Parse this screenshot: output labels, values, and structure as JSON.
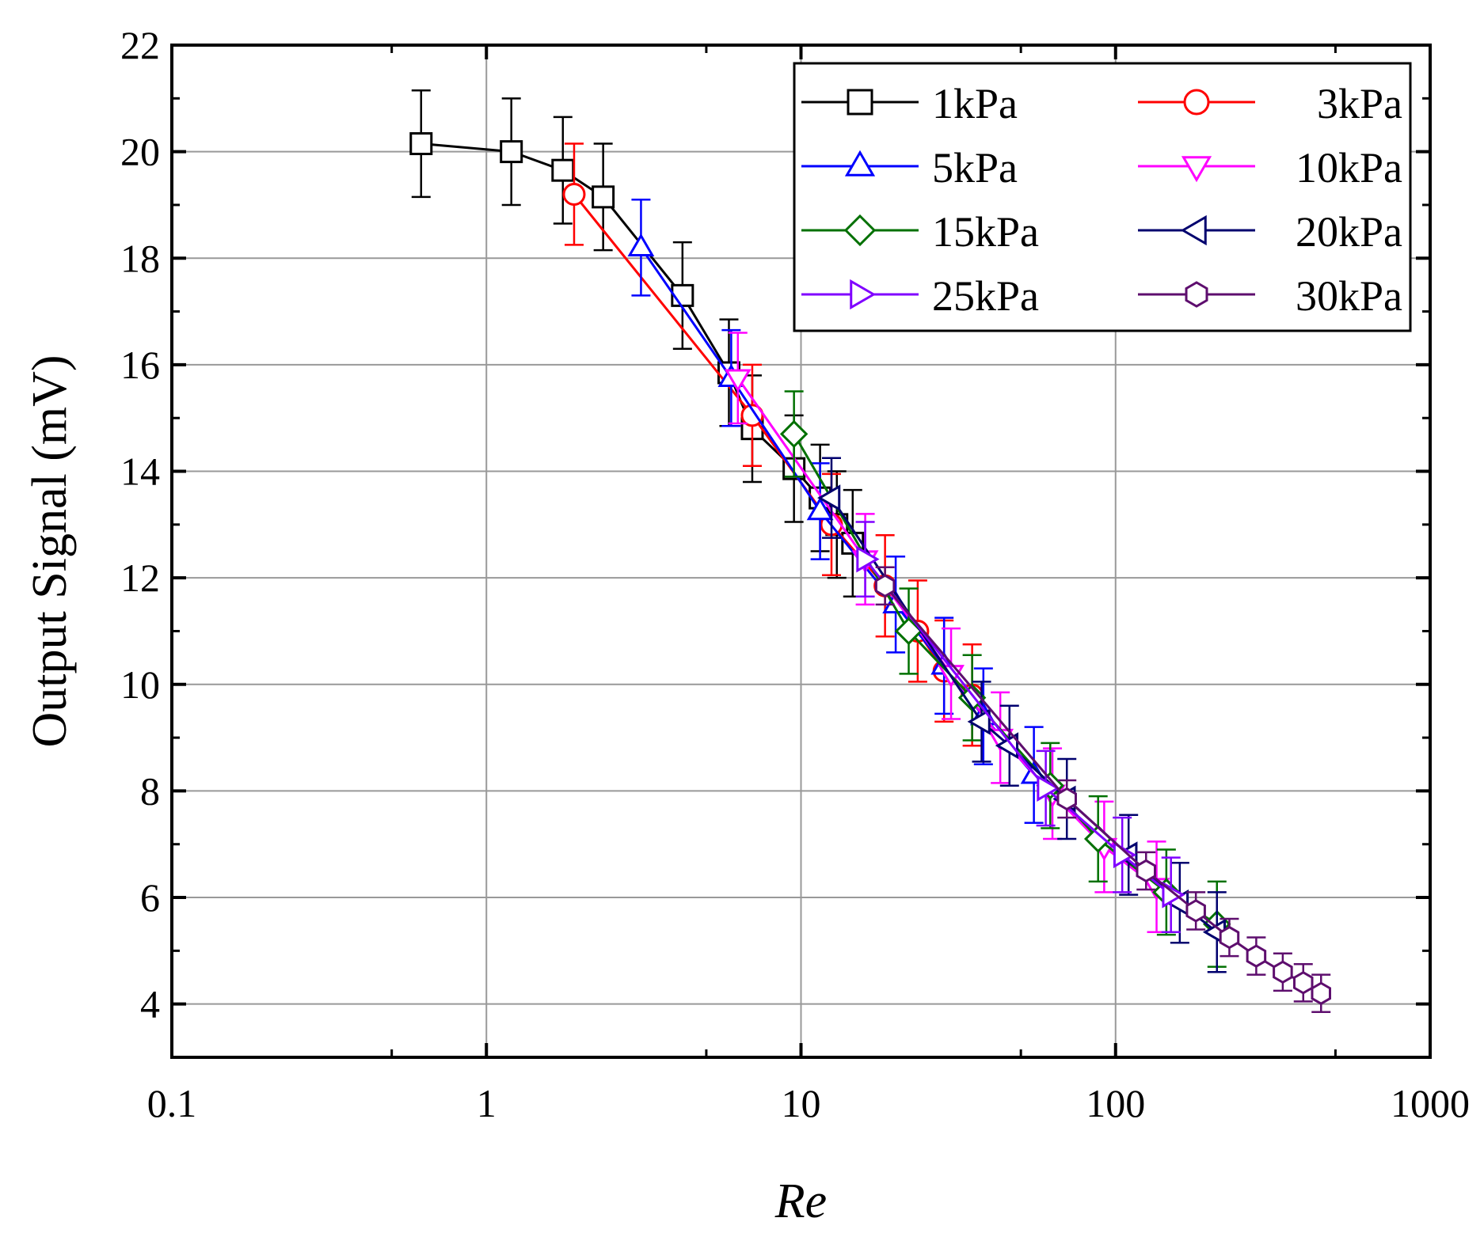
{
  "chart_data": {
    "type": "line",
    "xscale": "log",
    "xlabel": "Re",
    "ylabel": "Output Signal (mV)",
    "xlim": [
      0.1,
      1000
    ],
    "ylim": [
      3,
      22
    ],
    "x_ticks": [
      0.1,
      1,
      10,
      100,
      1000
    ],
    "x_tick_labels": [
      "0.1",
      "1",
      "10",
      "100",
      "1000"
    ],
    "y_ticks": [
      4,
      6,
      8,
      10,
      12,
      14,
      16,
      18,
      20,
      22
    ],
    "y_tick_labels": [
      "4",
      "6",
      "8",
      "10",
      "12",
      "14",
      "16",
      "18",
      "20",
      "22"
    ],
    "grid": true,
    "legend_position": "top-right",
    "series": [
      {
        "name": "1kPa",
        "color": "#000000",
        "marker": "square",
        "x": [
          0.62,
          1.2,
          1.75,
          2.35,
          4.2,
          5.9,
          7.0,
          9.5,
          11.5,
          13.0,
          14.6
        ],
        "y": [
          20.15,
          20.0,
          19.65,
          19.15,
          17.3,
          15.85,
          14.8,
          14.05,
          13.5,
          13.0,
          12.65
        ],
        "err": 1.0
      },
      {
        "name": "3kPa",
        "color": "#ff0000",
        "marker": "circle",
        "x": [
          1.9,
          7.0,
          12.5,
          18.5,
          23.5,
          28.5,
          35.0
        ],
        "y": [
          19.2,
          15.05,
          13.0,
          11.85,
          11.0,
          10.25,
          9.8
        ],
        "err": 0.95
      },
      {
        "name": "5kPa",
        "color": "#0000ff",
        "marker": "triangle-up",
        "x": [
          3.1,
          6.0,
          11.5,
          20.0,
          28.5,
          38.0,
          55.0
        ],
        "y": [
          18.2,
          15.75,
          13.25,
          11.5,
          10.35,
          9.4,
          8.3
        ],
        "err": 0.9
      },
      {
        "name": "10kPa",
        "color": "#ff00ff",
        "marker": "triangle-down",
        "x": [
          6.3,
          16.0,
          30.0,
          43.0,
          63.0,
          92.0,
          135.0
        ],
        "y": [
          15.75,
          12.35,
          10.2,
          9.0,
          7.95,
          6.95,
          6.2
        ],
        "err": 0.85
      },
      {
        "name": "15kPa",
        "color": "#007000",
        "marker": "diamond",
        "x": [
          9.5,
          22.0,
          35.0,
          62.0,
          88.0,
          145.0,
          210.0
        ],
        "y": [
          14.7,
          11.0,
          9.75,
          8.1,
          7.1,
          6.1,
          5.5
        ],
        "err": 0.8
      },
      {
        "name": "20kPa",
        "color": "#00006e",
        "marker": "triangle-left",
        "x": [
          12.5,
          37.5,
          46.0,
          70.0,
          110.0,
          160.0,
          210.0
        ],
        "y": [
          13.5,
          9.3,
          8.85,
          7.85,
          6.8,
          5.9,
          5.35
        ],
        "err": 0.75
      },
      {
        "name": "25kPa",
        "color": "#8000ff",
        "marker": "triangle-right",
        "x": [
          16.0,
          60.0,
          105.0,
          150.0
        ],
        "y": [
          12.35,
          8.05,
          6.8,
          6.05
        ],
        "err": 0.7
      },
      {
        "name": "30kPa",
        "color": "#5e0e6e",
        "marker": "hexagon",
        "x": [
          18.5,
          70.0,
          125.0,
          180.0,
          230.0,
          280.0,
          340.0,
          395.0,
          450.0
        ],
        "y": [
          11.85,
          7.85,
          6.5,
          5.75,
          5.25,
          4.9,
          4.6,
          4.4,
          4.2
        ],
        "err": 0.35
      }
    ]
  }
}
